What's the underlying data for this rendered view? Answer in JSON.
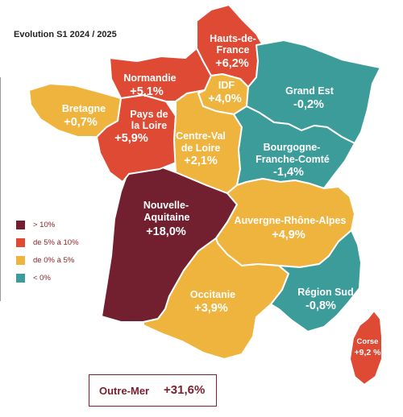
{
  "title": "Evolution S1 2024 / 2025",
  "colors": {
    "dark_red": "#722030",
    "red": "#df4a34",
    "yellow": "#eeb43e",
    "teal": "#3c9c9a"
  },
  "legend": [
    {
      "label": "> 10%",
      "color": "#722030"
    },
    {
      "label": "de 5% à 10%",
      "color": "#df4a34"
    },
    {
      "label": "de 0% à 5%",
      "color": "#eeb43e"
    },
    {
      "label": "< 0%",
      "color": "#3c9c9a"
    }
  ],
  "regions": {
    "hauts_de_france": {
      "name_line1": "Hauts-de-",
      "name_line2": "France",
      "value": "+6,2%",
      "color": "#df4a34"
    },
    "normandie": {
      "name": "Normandie",
      "value": "+5,1%",
      "color": "#df4a34"
    },
    "idf": {
      "name": "IDF",
      "value": "+4,0%",
      "color": "#eeb43e"
    },
    "grand_est": {
      "name": "Grand Est",
      "value": "-0,2%",
      "color": "#3c9c9a"
    },
    "bretagne": {
      "name": "Bretagne",
      "value": "+0,7%",
      "color": "#eeb43e"
    },
    "pays_de_la_loire": {
      "name_line1": "Pays de",
      "name_line2": "la Loire",
      "value": "+5,9%",
      "color": "#df4a34"
    },
    "centre_val_de_loire": {
      "name_line1": "Centre-Val",
      "name_line2": "de Loire",
      "value": "+2,1%",
      "color": "#eeb43e"
    },
    "bourgogne_franche_comte": {
      "name_line1": "Bourgogne-",
      "name_line2": "Franche-Comté",
      "value": "-1,4%",
      "color": "#3c9c9a"
    },
    "nouvelle_aquitaine": {
      "name_line1": "Nouvelle-",
      "name_line2": "Aquitaine",
      "value": "+18,0%",
      "color": "#722030"
    },
    "auvergne_rhone_alpes": {
      "name": "Auvergne-Rhône-Alpes",
      "value": "+4,9%",
      "color": "#eeb43e"
    },
    "occitanie": {
      "name": "Occitanie",
      "value": "+3,9%",
      "color": "#eeb43e"
    },
    "region_sud": {
      "name": "Région Sud",
      "value": "-0,8%",
      "color": "#3c9c9a"
    },
    "corse": {
      "name": "Corse",
      "value": "+9,2 %",
      "color": "#df4a34"
    }
  },
  "outre_mer": {
    "label": "Outre-Mer",
    "value": "+31,6%"
  }
}
